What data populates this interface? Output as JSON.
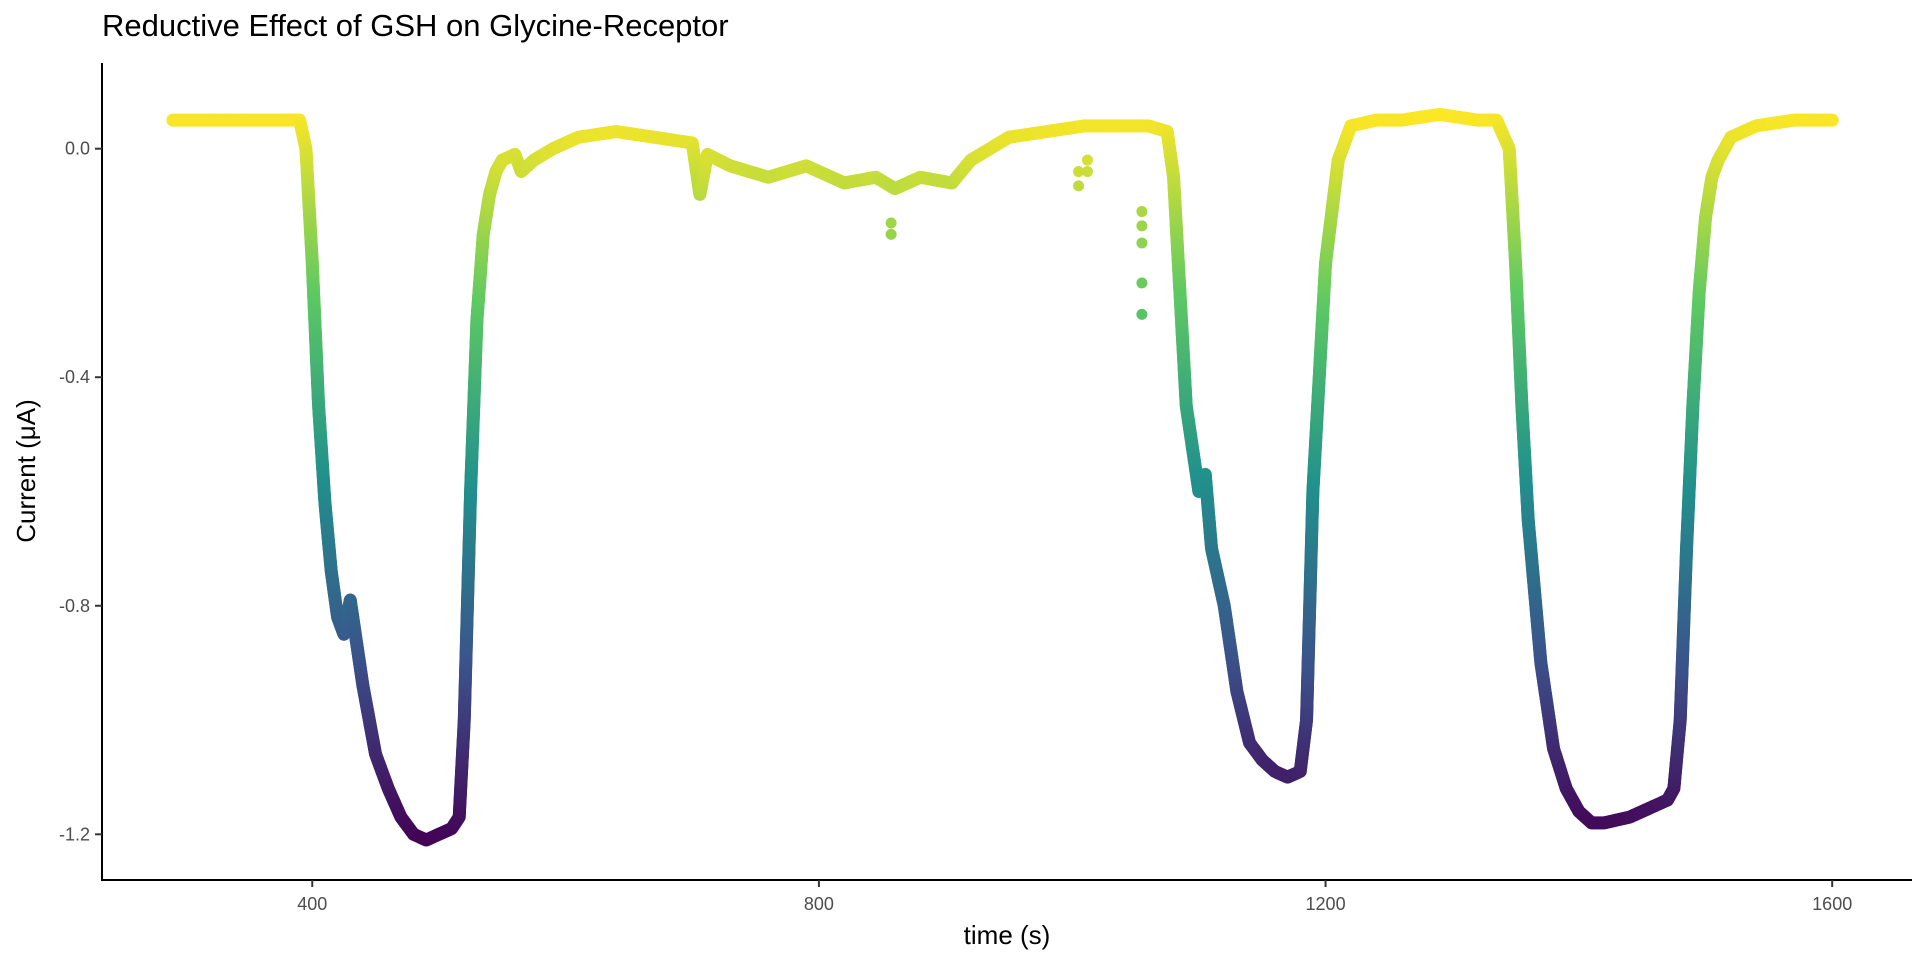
{
  "chart_data": {
    "type": "scatter",
    "title": "Reductive Effect of GSH on Glycine-Receptor",
    "xlabel": "time (s)",
    "ylabel": "Current (μA)",
    "xlim": [
      234,
      1663
    ],
    "ylim": [
      -1.28,
      0.15
    ],
    "x_ticks": [
      400,
      800,
      1200,
      1600
    ],
    "x_tick_labels": [
      "400",
      "800",
      "1200",
      "1600"
    ],
    "y_ticks": [
      0.0,
      -0.4,
      -0.8,
      -1.2
    ],
    "y_tick_labels": [
      "0.0",
      "-0.4",
      "-0.8",
      "-1.2"
    ],
    "grid": false,
    "legend": "none",
    "color_scale": {
      "name": "viridis",
      "domain": [
        -1.22,
        0.06
      ],
      "mapped_to": "y",
      "stops": [
        "#440154",
        "#3b528b",
        "#21918c",
        "#5ec962",
        "#fde725"
      ]
    },
    "series": [
      {
        "x": [
          290,
          330,
          370,
          390,
          395,
          400,
          405,
          410,
          415,
          420,
          425,
          430,
          440,
          450,
          460,
          470,
          480,
          490,
          500,
          510,
          516,
          520,
          525,
          530,
          535,
          540,
          545,
          550,
          560,
          565,
          575,
          590,
          610,
          640,
          670,
          700,
          706,
          712,
          730,
          760,
          790,
          820,
          845,
          860,
          880,
          905,
          920,
          950,
          980,
          1010,
          1030,
          1050,
          1060,
          1075,
          1080,
          1085,
          1090,
          1100,
          1105,
          1110,
          1115,
          1120,
          1130,
          1140,
          1150,
          1160,
          1170,
          1180,
          1185,
          1190,
          1200,
          1210,
          1220,
          1240,
          1260,
          1290,
          1320,
          1335,
          1345,
          1350,
          1355,
          1360,
          1370,
          1380,
          1390,
          1400,
          1410,
          1420,
          1440,
          1460,
          1470,
          1475,
          1480,
          1485,
          1490,
          1495,
          1500,
          1505,
          1510,
          1520,
          1540,
          1570,
          1600
        ],
        "y": [
          0.05,
          0.05,
          0.05,
          0.05,
          0.0,
          -0.2,
          -0.45,
          -0.62,
          -0.74,
          -0.82,
          -0.85,
          -0.79,
          -0.94,
          -1.06,
          -1.12,
          -1.17,
          -1.2,
          -1.21,
          -1.2,
          -1.19,
          -1.17,
          -1.0,
          -0.6,
          -0.3,
          -0.15,
          -0.08,
          -0.04,
          -0.02,
          -0.01,
          -0.04,
          -0.02,
          0.0,
          0.02,
          0.03,
          0.02,
          0.01,
          -0.08,
          -0.01,
          -0.03,
          -0.05,
          -0.03,
          -0.06,
          -0.05,
          -0.07,
          -0.05,
          -0.06,
          -0.02,
          0.02,
          0.03,
          0.04,
          0.04,
          0.04,
          0.04,
          0.03,
          -0.05,
          -0.25,
          -0.45,
          -0.6,
          -0.57,
          -0.7,
          -0.75,
          -0.8,
          -0.95,
          -1.04,
          -1.07,
          -1.09,
          -1.1,
          -1.09,
          -1.0,
          -0.6,
          -0.2,
          -0.02,
          0.04,
          0.05,
          0.05,
          0.06,
          0.05,
          0.05,
          0.0,
          -0.2,
          -0.45,
          -0.65,
          -0.9,
          -1.05,
          -1.12,
          -1.16,
          -1.18,
          -1.18,
          -1.17,
          -1.15,
          -1.14,
          -1.12,
          -1.0,
          -0.7,
          -0.45,
          -0.25,
          -0.12,
          -0.05,
          -0.02,
          0.02,
          0.04,
          0.05,
          0.05
        ]
      },
      {
        "x": [
          1005,
          1005,
          1012,
          1012,
          1055,
          1055,
          1055,
          1055,
          1055,
          857,
          857
        ],
        "y": [
          -0.04,
          -0.065,
          -0.04,
          -0.02,
          -0.11,
          -0.135,
          -0.165,
          -0.235,
          -0.29,
          -0.13,
          -0.15
        ]
      }
    ]
  }
}
